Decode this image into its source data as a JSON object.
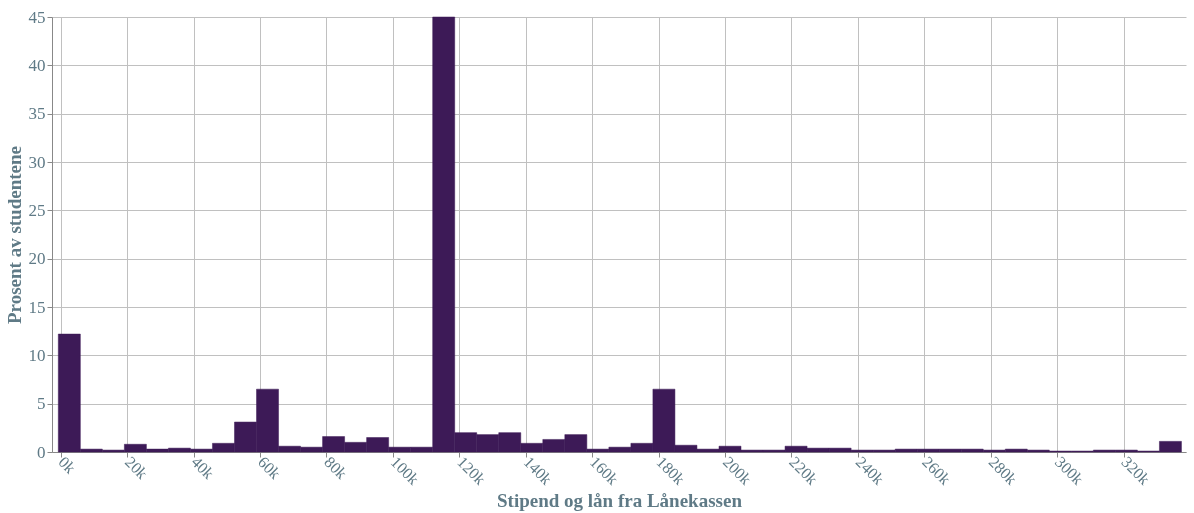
{
  "chart_data": {
    "type": "histogram",
    "xlabel": "Stipend og lån fra Lånekassen",
    "ylabel": "Prosent av studentene",
    "bins": [
      -700,
      5930,
      12560,
      19190,
      25820,
      32450,
      39080,
      45710,
      52340,
      58970,
      65600,
      72230,
      78860,
      85490,
      92120,
      98750,
      105380,
      112010,
      118640,
      125270,
      131900,
      138530,
      145160,
      151790,
      158420,
      165050,
      171680,
      178310,
      184940,
      191570,
      198200,
      204830,
      211460,
      218090,
      224720,
      231350,
      237980,
      244610,
      251240,
      257870,
      264500,
      271130,
      277760,
      284390,
      291020,
      297650,
      304280,
      310910,
      317540,
      324170,
      330800,
      337430
    ],
    "values": [
      12.2,
      0.3,
      0.2,
      0.8,
      0.3,
      0.4,
      0.3,
      0.9,
      3.1,
      6.5,
      0.6,
      0.5,
      1.6,
      1.0,
      1.5,
      0.5,
      0.5,
      45,
      2.0,
      1.8,
      2.0,
      0.9,
      1.3,
      1.8,
      0.3,
      0.5,
      0.9,
      6.5,
      0.7,
      0.3,
      0.6,
      0.2,
      0.2,
      0.6,
      0.4,
      0.4,
      0.2,
      0.2,
      0.3,
      0.3,
      0.3,
      0.3,
      0.2,
      0.3,
      0.2,
      0.1,
      0.1,
      0.2,
      0.2,
      0.1,
      1.1
    ],
    "color": "#3d1a57",
    "xlim": [
      -2600,
      338800
    ],
    "xticks": [
      {
        "value": 0,
        "label": "0k"
      },
      {
        "value": 20000,
        "label": "20k"
      },
      {
        "value": 40000,
        "label": "40k"
      },
      {
        "value": 60000,
        "label": "60k"
      },
      {
        "value": 80000,
        "label": "80k"
      },
      {
        "value": 100000,
        "label": "100k"
      },
      {
        "value": 120000,
        "label": "120k"
      },
      {
        "value": 140000,
        "label": "140k"
      },
      {
        "value": 160000,
        "label": "160k"
      },
      {
        "value": 180000,
        "label": "180k"
      },
      {
        "value": 200000,
        "label": "200k"
      },
      {
        "value": 220000,
        "label": "220k"
      },
      {
        "value": 240000,
        "label": "240k"
      },
      {
        "value": 260000,
        "label": "260k"
      },
      {
        "value": 280000,
        "label": "280k"
      },
      {
        "value": 300000,
        "label": "300k"
      },
      {
        "value": 320000,
        "label": "320k"
      }
    ],
    "ylim": [
      0,
      45
    ],
    "yticks": [
      0,
      5,
      10,
      15,
      20,
      25,
      30,
      35,
      40,
      45
    ],
    "grid": true
  }
}
